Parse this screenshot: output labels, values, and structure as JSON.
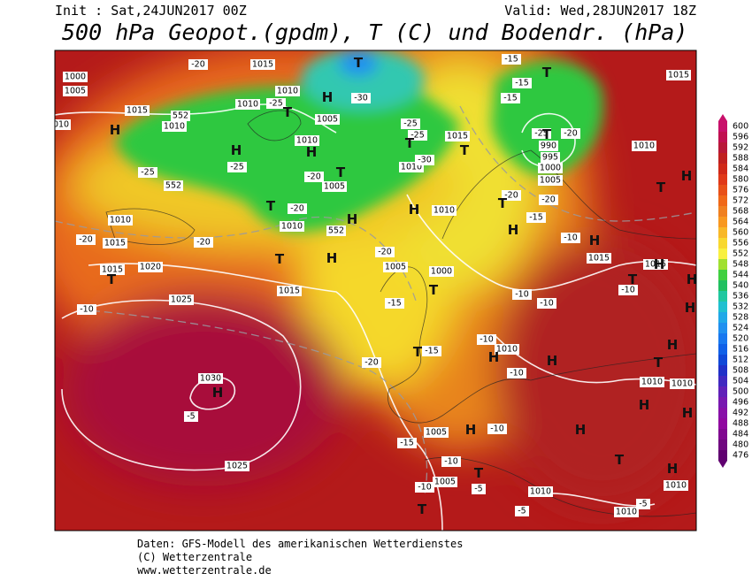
{
  "header": {
    "init": "Init : Sat,24JUN2017 00Z",
    "valid": "Valid: Wed,28JUN2017 18Z",
    "title": "500 hPa Geopot.(gpdm), T (C) und Bodendr. (hPa)"
  },
  "map": {
    "pressure_labels": [
      "1000",
      "1005",
      "1015",
      "1015",
      "1010",
      "1010",
      "1010",
      "1010",
      "1005",
      "1010",
      "1005",
      "1015",
      "1010",
      "1010",
      "1010",
      "1015",
      "1015",
      "1020",
      "1015",
      "1025",
      "1005",
      "1000",
      "1010",
      "1010",
      "1015",
      "1015",
      "1015",
      "1030",
      "1025",
      "1010",
      "1010",
      "1010",
      "1005",
      "1005",
      "1010",
      "1010",
      "1010",
      "990",
      "995",
      "1000",
      "1005"
    ],
    "temperature_labels": [
      "-20",
      "-25",
      "-30",
      "-25",
      "-25",
      "-30",
      "-20",
      "-25",
      "-25",
      "-20",
      "-20",
      "-20",
      "-20",
      "-15",
      "-10",
      "-20",
      "-15",
      "-10",
      "-10",
      "-10",
      "-10",
      "-10",
      "-10",
      "-5",
      "-15",
      "-10",
      "-5",
      "-10",
      "-5",
      "-5",
      "-15",
      "-15",
      "-15",
      "-20",
      "-25",
      "-20",
      "-20",
      "-15",
      "-10"
    ],
    "contour_labels": [
      "552",
      "552",
      "552"
    ],
    "centers": [
      "T",
      "H",
      "T",
      "H",
      "H",
      "H",
      "T",
      "T",
      "H",
      "T",
      "T",
      "T",
      "T",
      "H",
      "T",
      "H",
      "T",
      "H",
      "T",
      "T",
      "H",
      "T",
      "H",
      "H",
      "T",
      "H",
      "H",
      "T",
      "H",
      "H",
      "H",
      "H",
      "H",
      "H",
      "T",
      "T",
      "T",
      "H",
      "T",
      "H",
      "H"
    ]
  },
  "colorbar": {
    "ticks": [
      "600",
      "596",
      "592",
      "588",
      "584",
      "580",
      "576",
      "572",
      "568",
      "564",
      "560",
      "556",
      "552",
      "548",
      "544",
      "540",
      "536",
      "532",
      "528",
      "524",
      "520",
      "516",
      "512",
      "508",
      "504",
      "500",
      "496",
      "492",
      "488",
      "484",
      "480",
      "476"
    ],
    "colors": [
      "#c8106a",
      "#c01050",
      "#b81838",
      "#c02020",
      "#d02818",
      "#e03818",
      "#e85018",
      "#f06818",
      "#f08020",
      "#f89820",
      "#f8b828",
      "#f8d830",
      "#f8f040",
      "#a0e030",
      "#40d040",
      "#20c060",
      "#20c8a0",
      "#20c0d0",
      "#20a8e8",
      "#2090f0",
      "#1878f0",
      "#1060e8",
      "#1048d8",
      "#2030c8",
      "#4028c0",
      "#6020b8",
      "#7818b0",
      "#8810a8",
      "#9008a0",
      "#800890",
      "#700880",
      "#600070"
    ]
  },
  "footer": {
    "line1": "Daten: GFS-Modell des amerikanischen Wetterdienstes",
    "line2": "(C) Wetterzentrale",
    "line3": "www.wetterzentrale.de"
  }
}
